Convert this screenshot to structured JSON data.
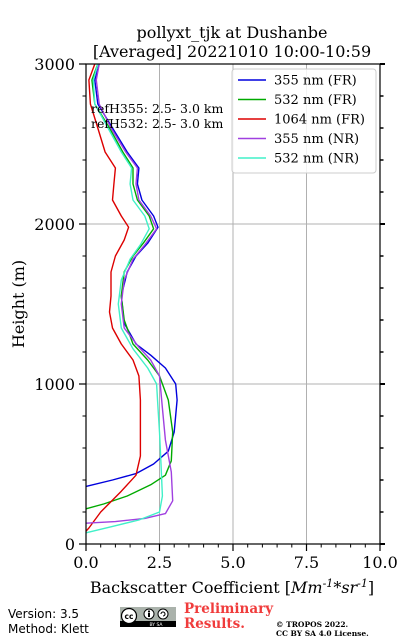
{
  "chart_data": {
    "type": "line",
    "title": [
      "pollyxt_tjk at Dushanbe",
      "[Averaged] 20221010 10:00-10:59"
    ],
    "xlabel": "Backscatter Coefficient [Mm^{-1}*sr^{-1}]",
    "ylabel": "Height (m)",
    "xlim": [
      0,
      10
    ],
    "ylim": [
      0,
      3000
    ],
    "xticks": [
      0.0,
      2.5,
      5.0,
      7.5,
      10.0
    ],
    "xtick_labels": [
      "0.0",
      "2.5",
      "5.0",
      "7.5",
      "10.0"
    ],
    "yticks": [
      0,
      1000,
      2000,
      3000
    ],
    "ytick_labels": [
      "0",
      "1000",
      "2000",
      "3000"
    ],
    "grid": true,
    "legend_position": "top-right",
    "annotations": [
      "refH355:  2.5- 3.0 km",
      "refH532:  2.5- 3.0 km"
    ],
    "series": [
      {
        "name": "355 nm (FR)",
        "color": "#0000dd",
        "points": [
          [
            0.0,
            360
          ],
          [
            0.9,
            400
          ],
          [
            1.7,
            440
          ],
          [
            2.3,
            500
          ],
          [
            2.8,
            580
          ],
          [
            3.0,
            700
          ],
          [
            3.1,
            900
          ],
          [
            3.05,
            1000
          ],
          [
            2.7,
            1100
          ],
          [
            2.2,
            1180
          ],
          [
            1.7,
            1250
          ],
          [
            1.3,
            1380
          ],
          [
            1.2,
            1550
          ],
          [
            1.4,
            1700
          ],
          [
            1.7,
            1800
          ],
          [
            2.1,
            1880
          ],
          [
            2.45,
            1980
          ],
          [
            2.3,
            2050
          ],
          [
            1.9,
            2150
          ],
          [
            1.75,
            2250
          ],
          [
            1.8,
            2350
          ],
          [
            1.4,
            2450
          ],
          [
            0.9,
            2600
          ],
          [
            0.4,
            2750
          ],
          [
            0.3,
            2900
          ],
          [
            0.45,
            3000
          ]
        ]
      },
      {
        "name": "532 nm (FR)",
        "color": "#00aa00",
        "points": [
          [
            0.0,
            220
          ],
          [
            0.6,
            250
          ],
          [
            1.4,
            300
          ],
          [
            2.2,
            370
          ],
          [
            2.7,
            430
          ],
          [
            2.9,
            520
          ],
          [
            2.95,
            700
          ],
          [
            2.8,
            900
          ],
          [
            2.5,
            1050
          ],
          [
            2.1,
            1150
          ],
          [
            1.6,
            1250
          ],
          [
            1.3,
            1400
          ],
          [
            1.2,
            1550
          ],
          [
            1.3,
            1700
          ],
          [
            1.6,
            1800
          ],
          [
            1.95,
            1880
          ],
          [
            2.3,
            1970
          ],
          [
            2.15,
            2050
          ],
          [
            1.75,
            2150
          ],
          [
            1.6,
            2250
          ],
          [
            1.6,
            2350
          ],
          [
            1.25,
            2450
          ],
          [
            0.8,
            2600
          ],
          [
            0.3,
            2750
          ],
          [
            0.2,
            2900
          ],
          [
            0.4,
            3000
          ]
        ]
      },
      {
        "name": "1064 nm (FR)",
        "color": "#dd0000",
        "points": [
          [
            0.0,
            80
          ],
          [
            0.1,
            100
          ],
          [
            0.5,
            200
          ],
          [
            1.2,
            330
          ],
          [
            1.7,
            430
          ],
          [
            1.85,
            550
          ],
          [
            1.85,
            900
          ],
          [
            1.8,
            1050
          ],
          [
            1.6,
            1150
          ],
          [
            1.2,
            1250
          ],
          [
            0.9,
            1350
          ],
          [
            0.8,
            1450
          ],
          [
            0.85,
            1550
          ],
          [
            0.85,
            1700
          ],
          [
            1.0,
            1800
          ],
          [
            1.3,
            1900
          ],
          [
            1.45,
            1980
          ],
          [
            1.2,
            2050
          ],
          [
            0.9,
            2150
          ],
          [
            0.95,
            2250
          ],
          [
            1.0,
            2350
          ],
          [
            0.65,
            2450
          ],
          [
            0.4,
            2600
          ],
          [
            0.15,
            2750
          ],
          [
            0.1,
            2900
          ],
          [
            0.3,
            3000
          ]
        ]
      },
      {
        "name": "355 nm (NR)",
        "color": "#a040e0",
        "points": [
          [
            0.0,
            130
          ],
          [
            1.0,
            140
          ],
          [
            2.0,
            160
          ],
          [
            2.7,
            190
          ],
          [
            2.95,
            270
          ],
          [
            2.9,
            450
          ],
          [
            2.7,
            650
          ],
          [
            2.6,
            850
          ],
          [
            2.5,
            1050
          ],
          [
            2.2,
            1150
          ],
          [
            1.8,
            1230
          ],
          [
            1.3,
            1350
          ],
          [
            1.2,
            1500
          ],
          [
            1.3,
            1650
          ],
          [
            1.6,
            1780
          ],
          [
            2.0,
            1870
          ],
          [
            2.4,
            1970
          ],
          [
            2.2,
            2050
          ],
          [
            1.8,
            2150
          ],
          [
            1.7,
            2250
          ],
          [
            1.75,
            2350
          ],
          [
            1.35,
            2450
          ],
          [
            0.85,
            2600
          ],
          [
            0.45,
            2750
          ],
          [
            0.35,
            2900
          ],
          [
            0.45,
            3000
          ]
        ]
      },
      {
        "name": "532 nm (NR)",
        "color": "#40f0c8",
        "points": [
          [
            0.0,
            70
          ],
          [
            0.9,
            110
          ],
          [
            1.8,
            150
          ],
          [
            2.5,
            200
          ],
          [
            2.6,
            300
          ],
          [
            2.55,
            500
          ],
          [
            2.5,
            700
          ],
          [
            2.45,
            850
          ],
          [
            2.4,
            1000
          ],
          [
            2.1,
            1100
          ],
          [
            1.6,
            1220
          ],
          [
            1.2,
            1350
          ],
          [
            1.1,
            1500
          ],
          [
            1.2,
            1650
          ],
          [
            1.5,
            1780
          ],
          [
            1.85,
            1870
          ],
          [
            2.15,
            1970
          ],
          [
            2.0,
            2050
          ],
          [
            1.6,
            2150
          ],
          [
            1.5,
            2250
          ],
          [
            1.55,
            2350
          ],
          [
            1.2,
            2450
          ],
          [
            0.75,
            2600
          ],
          [
            0.3,
            2750
          ],
          [
            0.25,
            2900
          ],
          [
            0.4,
            3000
          ]
        ]
      }
    ]
  },
  "footer": {
    "version": "Version: 3.5",
    "method": "Method: Klett",
    "preliminary_line1": "Preliminary",
    "preliminary_line2": "Results.",
    "copyright_line1": "© TROPOS 2022.",
    "copyright_line2": "CC BY SA 4.0 License.",
    "license_icon": "cc-by-sa-icon",
    "license_badge_text": "BY SA"
  }
}
